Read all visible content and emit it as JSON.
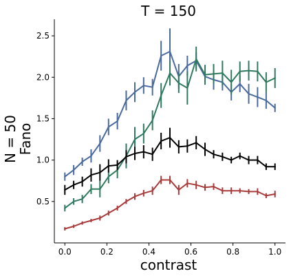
{
  "chart_data": {
    "type": "line",
    "title": "T = 150",
    "xlabel": "contrast",
    "ylabel_line1": "N = 50",
    "ylabel_line2": "Fano",
    "xlim": [
      -0.05,
      1.05
    ],
    "ylim": [
      0.0,
      2.7
    ],
    "xticks": [
      0.0,
      0.2,
      0.4,
      0.6,
      0.8,
      1.0
    ],
    "xtick_labels": [
      "0.0",
      "0.2",
      "0.4",
      "0.6",
      "0.8",
      "1.0"
    ],
    "yticks": [
      0.5,
      1.0,
      1.5,
      2.0,
      2.5
    ],
    "ytick_labels": [
      "0.5",
      "1.0",
      "1.5",
      "2.0",
      "2.5"
    ],
    "grid": false,
    "x": [
      0.0,
      0.042,
      0.083,
      0.125,
      0.167,
      0.208,
      0.25,
      0.292,
      0.333,
      0.375,
      0.417,
      0.458,
      0.5,
      0.542,
      0.583,
      0.625,
      0.667,
      0.708,
      0.75,
      0.792,
      0.833,
      0.875,
      0.917,
      0.958,
      1.0
    ],
    "series": [
      {
        "color": "#4a6a9e",
        "values": [
          0.8,
          0.88,
          0.98,
          1.05,
          1.2,
          1.4,
          1.47,
          1.72,
          1.82,
          1.9,
          1.88,
          2.26,
          2.31,
          2.01,
          2.14,
          2.2,
          2.01,
          1.97,
          1.94,
          1.82,
          1.92,
          1.8,
          1.76,
          1.72,
          1.63
        ],
        "errors": [
          0.05,
          0.06,
          0.05,
          0.08,
          0.1,
          0.1,
          0.1,
          0.12,
          0.12,
          0.1,
          0.1,
          0.18,
          0.28,
          0.15,
          0.12,
          0.1,
          0.1,
          0.12,
          0.1,
          0.1,
          0.1,
          0.12,
          0.12,
          0.1,
          0.05
        ]
      },
      {
        "color": "#2f7a5f",
        "values": [
          0.42,
          0.5,
          0.53,
          0.65,
          0.65,
          0.8,
          0.88,
          1.05,
          1.25,
          1.32,
          1.48,
          1.78,
          2.05,
          1.93,
          1.87,
          2.22,
          2.03,
          2.04,
          2.05,
          1.94,
          2.07,
          2.08,
          2.07,
          1.94,
          1.99
        ],
        "errors": [
          0.04,
          0.04,
          0.05,
          0.06,
          0.1,
          0.08,
          0.1,
          0.15,
          0.15,
          0.12,
          0.12,
          0.15,
          0.15,
          0.12,
          0.2,
          0.15,
          0.12,
          0.12,
          0.15,
          0.15,
          0.12,
          0.12,
          0.12,
          0.12,
          0.12
        ]
      },
      {
        "color": "#000000",
        "values": [
          0.64,
          0.7,
          0.74,
          0.82,
          0.85,
          0.93,
          0.94,
          1.04,
          1.08,
          1.1,
          1.07,
          1.23,
          1.27,
          1.16,
          1.17,
          1.21,
          1.13,
          1.07,
          1.04,
          1.0,
          1.05,
          1.0,
          1.0,
          0.92,
          0.92
        ],
        "errors": [
          0.06,
          0.05,
          0.06,
          0.08,
          0.1,
          0.08,
          0.06,
          0.08,
          0.08,
          0.08,
          0.08,
          0.1,
          0.12,
          0.08,
          0.08,
          0.08,
          0.08,
          0.05,
          0.05,
          0.04,
          0.04,
          0.05,
          0.05,
          0.04,
          0.04
        ]
      },
      {
        "color": "#a83a3a",
        "values": [
          0.17,
          0.2,
          0.24,
          0.27,
          0.3,
          0.36,
          0.42,
          0.5,
          0.56,
          0.6,
          0.63,
          0.76,
          0.76,
          0.64,
          0.72,
          0.7,
          0.67,
          0.68,
          0.63,
          0.63,
          0.63,
          0.62,
          0.62,
          0.57,
          0.59
        ],
        "errors": [
          0.02,
          0.02,
          0.02,
          0.02,
          0.03,
          0.03,
          0.03,
          0.03,
          0.04,
          0.04,
          0.05,
          0.05,
          0.05,
          0.06,
          0.05,
          0.05,
          0.04,
          0.04,
          0.04,
          0.04,
          0.03,
          0.03,
          0.04,
          0.03,
          0.04
        ]
      }
    ]
  }
}
